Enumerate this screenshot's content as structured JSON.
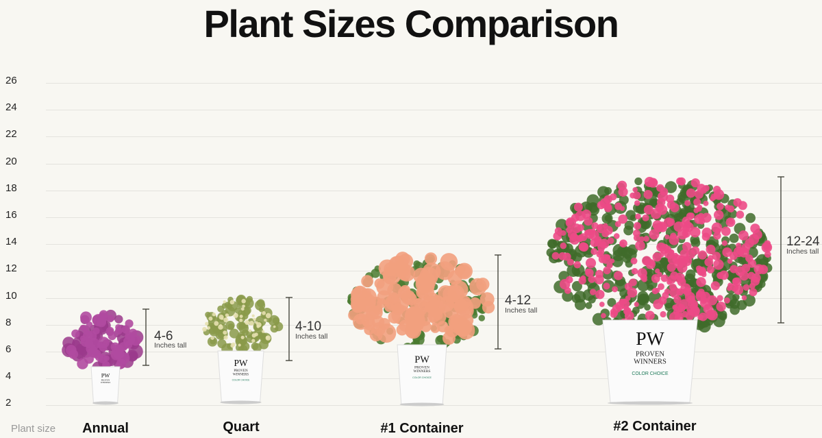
{
  "title": "Plant Sizes Comparison",
  "y_axis": {
    "ticks": [
      "26",
      "24",
      "22",
      "20",
      "18",
      "16",
      "14",
      "12",
      "10",
      "8",
      "6",
      "4",
      "2"
    ]
  },
  "x_axis_label": "Plant size",
  "height_unit_label": "Inches tall",
  "plants": [
    {
      "category": "Annual",
      "range": "4-6",
      "unit": "Inches tall",
      "foliage_color": "#9b3a8c",
      "flower_color": "#b04aa0"
    },
    {
      "category": "Quart",
      "range": "4-10",
      "unit": "Inches tall",
      "foliage_color": "#8a9a4a",
      "flower_color": "#e6e0b0"
    },
    {
      "category": "#1 Container",
      "range": "4-12",
      "unit": "Inches tall",
      "foliage_color": "#4a7a30",
      "flower_color": "#f2a07e"
    },
    {
      "category": "#2 Container",
      "range": "12-24",
      "unit": "Inches tall",
      "foliage_color": "#3f6b2a",
      "flower_color": "#ec4a86"
    }
  ],
  "pot_logo": {
    "mark": "PW",
    "line1": "PROVEN",
    "line2": "WINNERS",
    "sub": "COLOR CHOICE"
  }
}
